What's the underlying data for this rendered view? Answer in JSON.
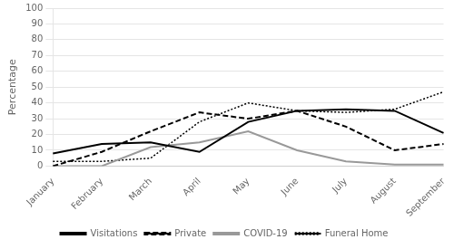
{
  "chart_data": {
    "type": "line",
    "categories": [
      "January",
      "February",
      "March",
      "April",
      "May",
      "June",
      "July",
      "August",
      "September"
    ],
    "series": [
      {
        "name": "Visitations",
        "color": "#000000",
        "line_style": "solid",
        "values": [
          8,
          14,
          15,
          9,
          28,
          35,
          36,
          35,
          21
        ]
      },
      {
        "name": "Private",
        "color": "#000000",
        "line_style": "dashed",
        "values": [
          0,
          9,
          22,
          34,
          30,
          35,
          25,
          10,
          14
        ]
      },
      {
        "name": "COVID-19",
        "color": "#999999",
        "line_style": "solid",
        "values": [
          0,
          0,
          12,
          15,
          22,
          10,
          3,
          1,
          1
        ]
      },
      {
        "name": "Funeral Home",
        "color": "#000000",
        "line_style": "dotted",
        "values": [
          3,
          3,
          5,
          28,
          40,
          35,
          34,
          36,
          47
        ]
      }
    ],
    "y_label": "Percentage",
    "ylim": [
      0,
      100
    ],
    "yticks": [
      0,
      10,
      20,
      30,
      40,
      50,
      60,
      70,
      80,
      90,
      100
    ],
    "grid": true,
    "legend": "bottom"
  }
}
